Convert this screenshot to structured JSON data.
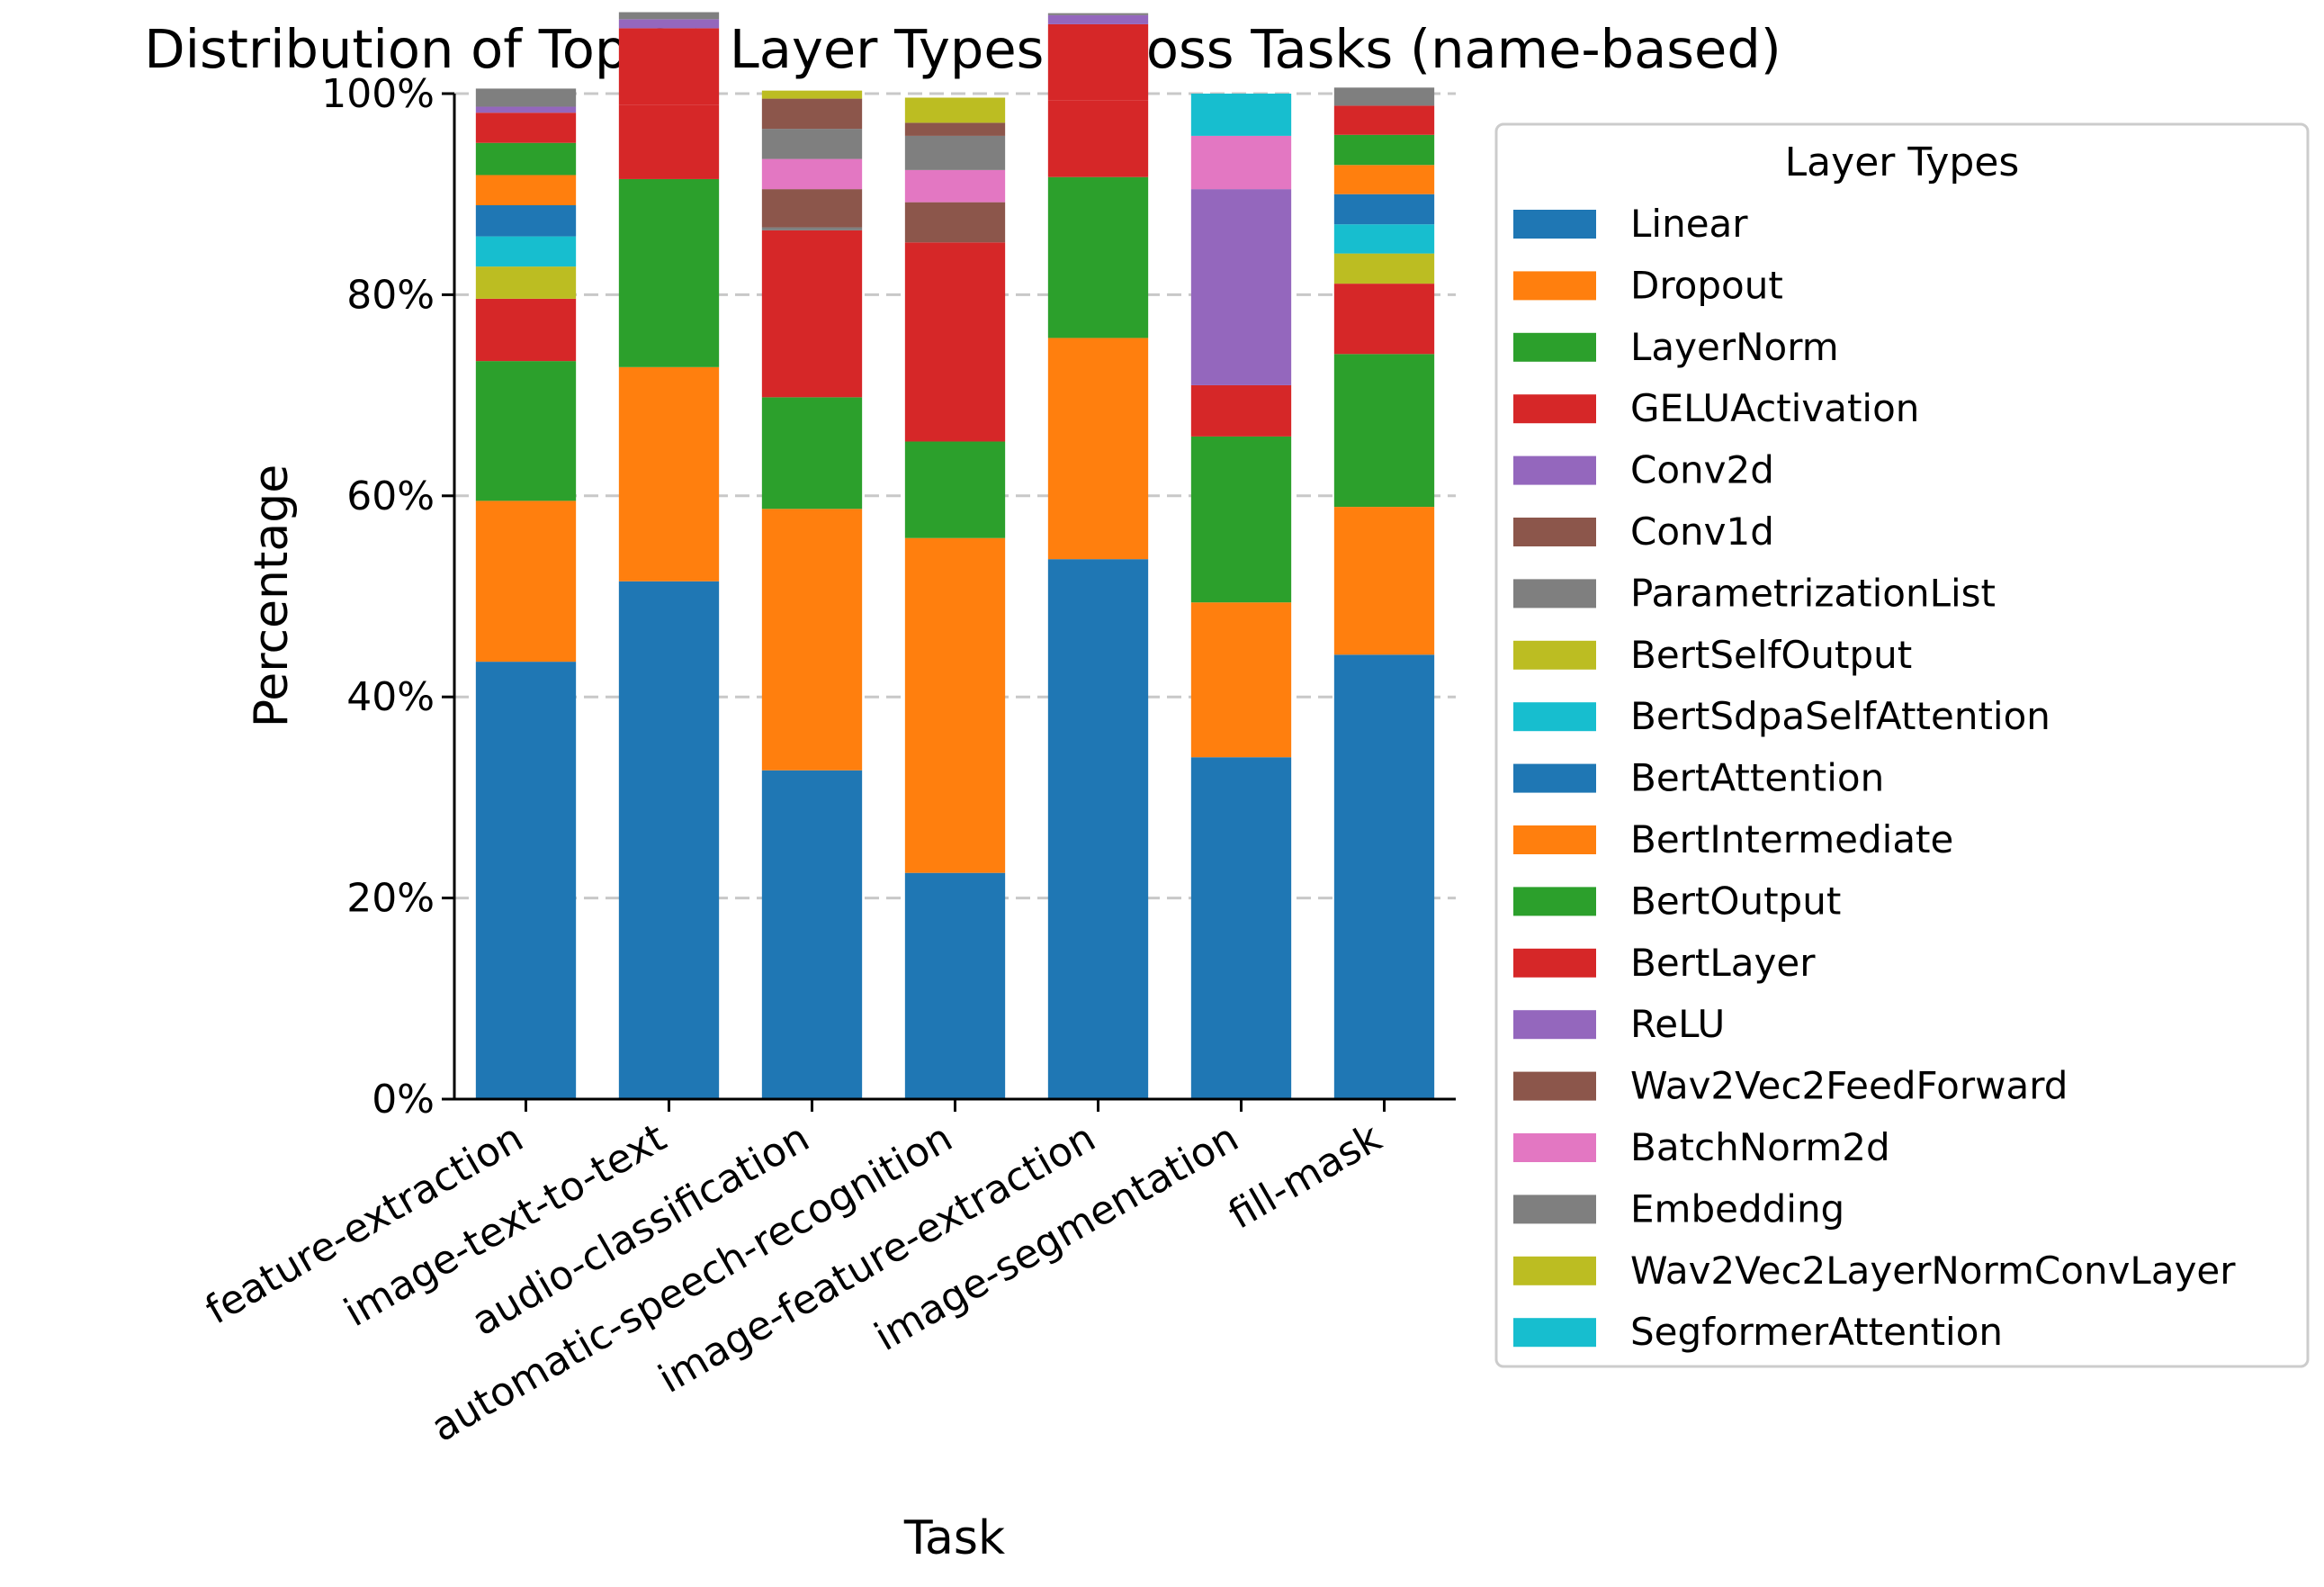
{
  "chart_data": {
    "type": "bar",
    "stacked": true,
    "title": "Distribution of Top 20 Layer Types Across Tasks (name-based)",
    "xlabel": "Task",
    "ylabel": "Percentage",
    "ylim": [
      0,
      100
    ],
    "yticks": [
      0,
      20,
      40,
      60,
      80,
      100
    ],
    "ytick_suffix": "%",
    "grid": "y-dashed",
    "legend": {
      "title": "Layer Types",
      "placement": "outside-right"
    },
    "categories": [
      "feature-extraction",
      "image-text-to-text",
      "audio-classification",
      "automatic-speech-recognition",
      "image-feature-extraction",
      "image-segmentation",
      "fill-mask"
    ],
    "series": [
      {
        "name": "Linear",
        "color": "#1f77b4",
        "values": [
          43.5,
          51.5,
          32.7,
          22.5,
          53.7,
          34.0,
          44.2
        ]
      },
      {
        "name": "Dropout",
        "color": "#ff7f0e",
        "values": [
          16.0,
          21.3,
          26.0,
          33.3,
          22.0,
          15.4,
          14.7
        ]
      },
      {
        "name": "LayerNorm",
        "color": "#2ca02c",
        "values": [
          13.9,
          18.7,
          11.1,
          9.6,
          16.0,
          16.5,
          15.2
        ]
      },
      {
        "name": "GELUActivation",
        "color": "#d62728",
        "values": [
          6.2,
          7.4,
          16.6,
          19.8,
          7.6,
          5.1,
          7.0
        ]
      },
      {
        "name": "Conv2d",
        "color": "#9467bd",
        "values": [
          0,
          0,
          0,
          0,
          0,
          0,
          0
        ]
      },
      {
        "name": "Conv1d",
        "color": "#8c564b",
        "values": [
          0,
          0,
          0,
          0,
          0,
          0,
          0
        ]
      },
      {
        "name": "ParametrizationList",
        "color": "#7f7f7f",
        "values": [
          0,
          0,
          0,
          0,
          0,
          0,
          0
        ]
      },
      {
        "name": "BertSelfOutput",
        "color": "#bcbd22",
        "values": [
          3.2,
          0,
          0,
          0,
          0,
          0,
          3.0
        ]
      },
      {
        "name": "BertSdpaSelfAttention",
        "color": "#17becf",
        "values": [
          3.0,
          0,
          0,
          0,
          0,
          0,
          2.9
        ]
      },
      {
        "name": "BertAttention",
        "color": "#1f77b4",
        "values": [
          3.1,
          0,
          0,
          0,
          0,
          0,
          3.0
        ]
      },
      {
        "name": "BertIntermediate",
        "color": "#ff7f0e",
        "values": [
          3.0,
          0,
          0,
          0,
          0,
          0,
          2.9
        ]
      },
      {
        "name": "BertOutput",
        "color": "#2ca02c",
        "values": [
          3.2,
          0,
          0,
          0,
          0,
          0,
          3.0
        ]
      },
      {
        "name": "BertLayer",
        "color": "#d62728",
        "values": [
          3.0,
          7.6,
          0,
          0,
          7.6,
          0,
          2.9
        ]
      },
      {
        "name": "ReLU",
        "color": "#9467bd",
        "values": [
          0.6,
          0.9,
          0,
          0,
          0.9,
          19.5,
          0
        ]
      },
      {
        "name": "Wav2Vec2FeedForward",
        "color": "#8c564b",
        "values": [
          0,
          0,
          3.8,
          4.0,
          0,
          0,
          0
        ]
      },
      {
        "name": "BatchNorm2d",
        "color": "#e377c2",
        "values": [
          0,
          0,
          3.0,
          3.2,
          0,
          5.3,
          0
        ]
      },
      {
        "name": "Embedding",
        "color": "#7f7f7f",
        "values": [
          1.8,
          0.7,
          3.0,
          3.4,
          0.2,
          0,
          1.8
        ]
      },
      {
        "name": "Wav2Vec2LayerNormConvLayer",
        "color": "#bcbd22",
        "values": [
          0,
          0,
          0.8,
          2.5,
          0,
          0,
          0
        ]
      },
      {
        "name": "SegformerAttention",
        "color": "#17becf",
        "values": [
          0,
          0,
          0,
          0,
          0,
          4.2,
          0
        ]
      }
    ],
    "extra_segments": [
      {
        "category": "audio-classification",
        "name": "Conv1d",
        "color": "#8c564b",
        "after": "Embedding",
        "value": 3.0
      },
      {
        "category": "audio-classification",
        "name": "Embedding",
        "color": "#7f7f7f",
        "after": "Conv1d",
        "value": 0.3
      },
      {
        "category": "automatic-speech-recognition",
        "name": "Conv1d",
        "color": "#8c564b",
        "after": "Embedding",
        "value": 1.3
      }
    ]
  }
}
